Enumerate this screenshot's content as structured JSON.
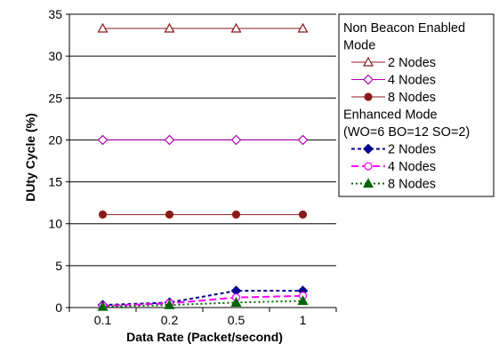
{
  "chart_data": {
    "type": "line",
    "categories": [
      "0.1",
      "0.2",
      "0.5",
      "1"
    ],
    "xlabel": "Data Rate (Packet/second)",
    "ylabel": "DUty Cycle (%)",
    "ylim": [
      0,
      35
    ],
    "yticks": [
      0,
      5,
      10,
      15,
      20,
      25,
      30,
      35
    ],
    "grid": "horizontal",
    "legend_position": "right",
    "groups": [
      {
        "title_lines": [
          "Non Beacon Enabled",
          "Mode"
        ],
        "series": [
          {
            "name": "2 Nodes",
            "values": [
              33.3,
              33.3,
              33.3,
              33.3
            ],
            "color": "#8b1a1a",
            "marker": "triangle-open",
            "dash": "solid"
          },
          {
            "name": "4 Nodes",
            "values": [
              20,
              20,
              20,
              20
            ],
            "color": "#b300b3",
            "marker": "diamond-open",
            "dash": "solid"
          },
          {
            "name": "8 Nodes",
            "values": [
              11.1,
              11.1,
              11.1,
              11.1
            ],
            "color": "#8b1a1a",
            "marker": "circle-filled",
            "dash": "solid"
          }
        ]
      },
      {
        "title_lines": [
          "Enhanced Mode",
          "(WO=6 BO=12 SO=2)"
        ],
        "series": [
          {
            "name": "2 Nodes",
            "values": [
              0.3,
              0.6,
              2.0,
              2.0
            ],
            "color": "#00008b",
            "marker": "diamond-filled",
            "dash": "short"
          },
          {
            "name": "4 Nodes",
            "values": [
              0.2,
              0.5,
              1.2,
              1.4
            ],
            "color": "#ff00ff",
            "marker": "circle-open",
            "dash": "long"
          },
          {
            "name": "8 Nodes",
            "values": [
              0.1,
              0.3,
              0.6,
              0.8
            ],
            "color": "#006400",
            "marker": "triangle-filled",
            "dash": "dot"
          }
        ]
      }
    ]
  }
}
